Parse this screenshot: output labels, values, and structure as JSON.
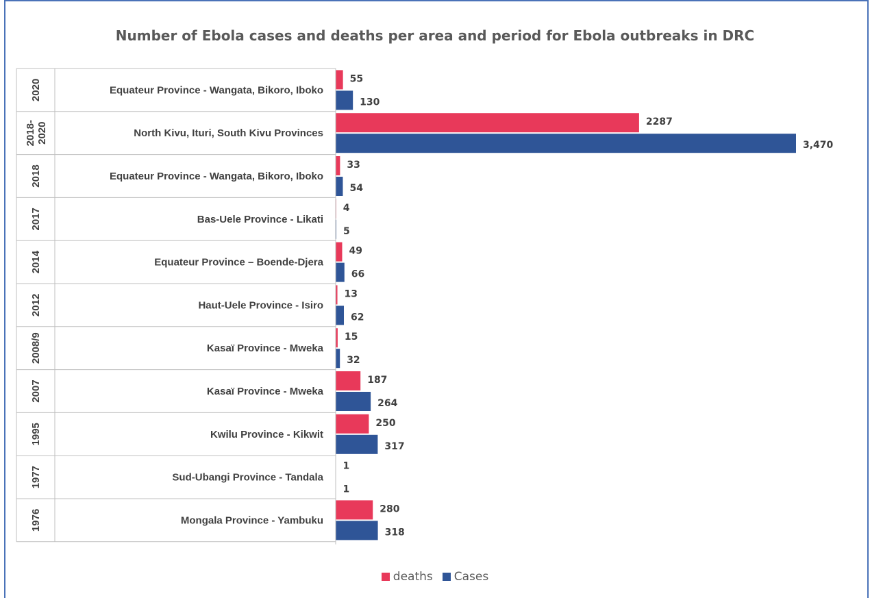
{
  "colors": {
    "deaths": "#e8395a",
    "cases": "#2f5597",
    "grid": "#bfbfbf"
  },
  "chart_data": {
    "type": "bar",
    "orientation": "horizontal",
    "title": "Number of Ebola cases and deaths per area and period for Ebola outbreaks in DRC",
    "rows": [
      {
        "year": "2020",
        "area": "Equateur Province - Wangata, Bikoro, Iboko",
        "deaths": 55,
        "deaths_label": "55",
        "cases": 130,
        "cases_label": "130"
      },
      {
        "year": "2018-2020",
        "area": "North Kivu, Ituri, South Kivu Provinces",
        "deaths": 2287,
        "deaths_label": "2287",
        "cases": 3470,
        "cases_label": "3,470"
      },
      {
        "year": "2018",
        "area": "Equateur Province - Wangata, Bikoro, Iboko",
        "deaths": 33,
        "deaths_label": "33",
        "cases": 54,
        "cases_label": "54"
      },
      {
        "year": "2017",
        "area": "Bas-Uele Province - Likati",
        "deaths": 4,
        "deaths_label": "4",
        "cases": 5,
        "cases_label": "5"
      },
      {
        "year": "2014",
        "area": "Equateur Province – Boende-Djera",
        "deaths": 49,
        "deaths_label": "49",
        "cases": 66,
        "cases_label": "66"
      },
      {
        "year": "2012",
        "area": "Haut-Uele Province - Isiro",
        "deaths": 13,
        "deaths_label": "13",
        "cases": 62,
        "cases_label": "62"
      },
      {
        "year": "2008/9",
        "area": "Kasaï Province - Mweka",
        "deaths": 15,
        "deaths_label": "15",
        "cases": 32,
        "cases_label": "32"
      },
      {
        "year": "2007",
        "area": "Kasaï Province - Mweka",
        "deaths": 187,
        "deaths_label": "187",
        "cases": 264,
        "cases_label": "264"
      },
      {
        "year": "1995",
        "area": "Kwilu Province - Kikwit",
        "deaths": 250,
        "deaths_label": "250",
        "cases": 317,
        "cases_label": "317"
      },
      {
        "year": "1977",
        "area": "Sud-Ubangi Province - Tandala",
        "deaths": 1,
        "deaths_label": "1",
        "cases": 1,
        "cases_label": "1"
      },
      {
        "year": "1976",
        "area": "Mongala Province - Yambuku",
        "deaths": 280,
        "deaths_label": "280",
        "cases": 318,
        "cases_label": "318"
      }
    ],
    "series": [
      {
        "name": "deaths",
        "key": "deaths"
      },
      {
        "name": "Cases",
        "key": "cases"
      }
    ],
    "xlim": [
      0,
      3470
    ],
    "legend_position": "bottom"
  }
}
